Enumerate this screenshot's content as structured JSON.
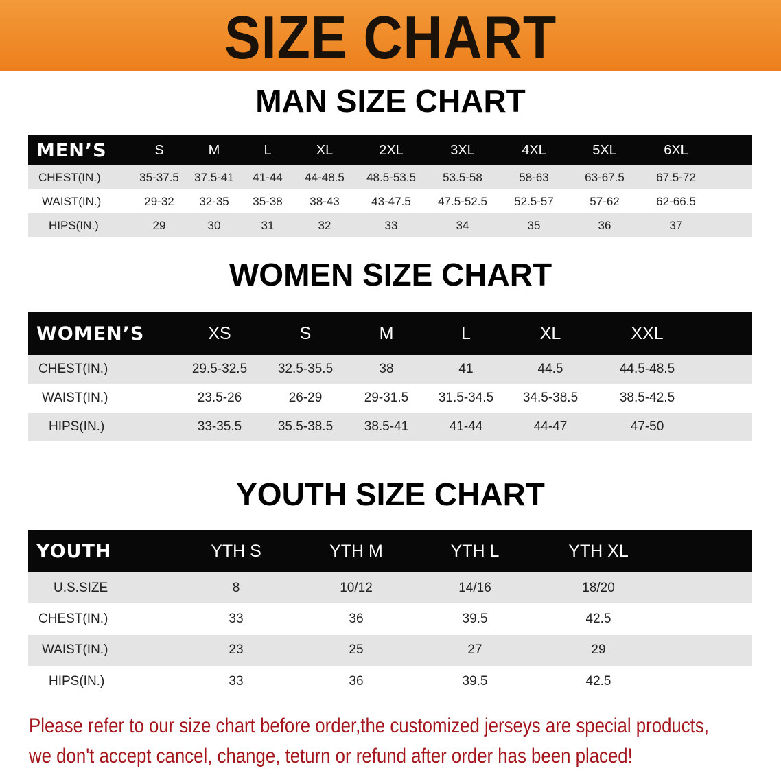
{
  "banner": {
    "title": "SIZE CHART",
    "color": "#ee8420"
  },
  "men": {
    "title": "MAN SIZE CHART",
    "header": "MEN’S",
    "sizes": [
      "S",
      "M",
      "L",
      "XL",
      "2XL",
      "3XL",
      "4XL",
      "5XL",
      "6XL"
    ],
    "rows": [
      {
        "label": "CHEST(IN.)",
        "values": [
          "35-37.5",
          "37.5-41",
          "41-44",
          "44-48.5",
          "48.5-53.5",
          "53.5-58",
          "58-63",
          "63-67.5",
          "67.5-72"
        ]
      },
      {
        "label": "WAIST(IN.)",
        "values": [
          "29-32",
          "32-35",
          "35-38",
          "38-43",
          "43-47.5",
          "47.5-52.5",
          "52.5-57",
          "57-62",
          "62-66.5"
        ]
      },
      {
        "label": "HIPS(IN.)",
        "values": [
          "29",
          "30",
          "31",
          "32",
          "33",
          "34",
          "35",
          "36",
          "37"
        ]
      }
    ]
  },
  "women": {
    "title": "WOMEN SIZE CHART",
    "header": "WOMEN’S",
    "sizes": [
      "XS",
      "S",
      "M",
      "L",
      "XL",
      "XXL"
    ],
    "rows": [
      {
        "label": "CHEST(IN.)",
        "values": [
          "29.5-32.5",
          "32.5-35.5",
          "38",
          "41",
          "44.5",
          "44.5-48.5"
        ]
      },
      {
        "label": "WAIST(IN.)",
        "values": [
          "23.5-26",
          "26-29",
          "29-31.5",
          "31.5-34.5",
          "34.5-38.5",
          "38.5-42.5"
        ]
      },
      {
        "label": "HIPS(IN.)",
        "values": [
          "33-35.5",
          "35.5-38.5",
          "38.5-41",
          "41-44",
          "44-47",
          "47-50"
        ]
      }
    ]
  },
  "youth": {
    "title": "YOUTH SIZE CHART",
    "header": "YOUTH",
    "sizes": [
      "YTH S",
      "YTH M",
      "YTH L",
      "YTH XL"
    ],
    "rows": [
      {
        "label": "U.S.SIZE",
        "values": [
          "8",
          "10/12",
          "14/16",
          "18/20"
        ]
      },
      {
        "label": "CHEST(IN.)",
        "values": [
          "33",
          "36",
          "39.5",
          "42.5"
        ]
      },
      {
        "label": "WAIST(IN.)",
        "values": [
          "23",
          "25",
          "27",
          "29"
        ]
      },
      {
        "label": "HIPS(IN.)",
        "values": [
          "33",
          "36",
          "39.5",
          "42.5"
        ]
      }
    ]
  },
  "notice": {
    "line1": "Please refer to our size chart before order,the customized jerseys are special products,",
    "line2": "we don't accept cancel, change, teturn or refund after order has been placed!",
    "color": "#a5161c"
  }
}
